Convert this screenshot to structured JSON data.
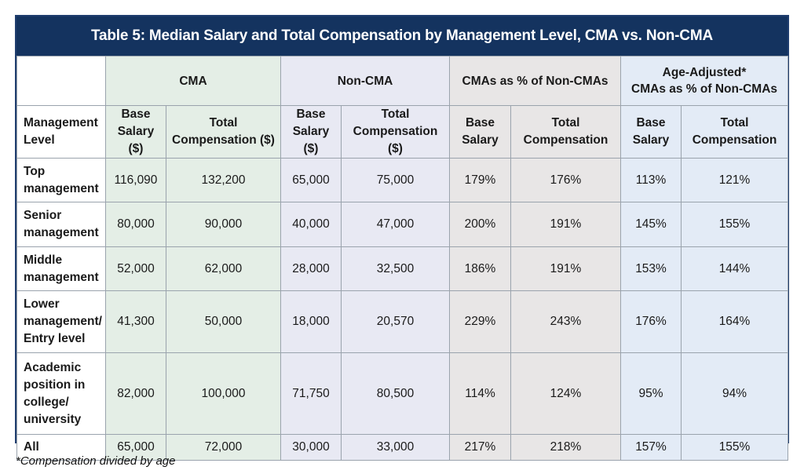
{
  "title": "Table 5: Median Salary and Total Compensation by Management Level, CMA vs. Non-CMA",
  "groups": {
    "cma": "CMA",
    "non_cma": "Non-CMA",
    "pct": "CMAs as % of Non-CMAs",
    "age_line1": "Age-Adjusted*",
    "age_line2": "CMAs as % of Non-CMAs"
  },
  "subheaders": {
    "level_line1": "Management",
    "level_line2": "Level",
    "base_line1": "Base",
    "base_line2": "Salary ($)",
    "total_line1": "Total",
    "total_line2": "Compensation ($)",
    "base_pct_line1": "Base",
    "base_pct_line2": "Salary",
    "total_pct_line1": "Total",
    "total_pct_line2": "Compensation"
  },
  "rows": [
    {
      "level": [
        "Top",
        "management"
      ],
      "values": [
        "116,090",
        "132,200",
        "65,000",
        "75,000",
        "179%",
        "176%",
        "113%",
        "121%"
      ]
    },
    {
      "level": [
        "Senior",
        "management"
      ],
      "values": [
        "80,000",
        "90,000",
        "40,000",
        "47,000",
        "200%",
        "191%",
        "145%",
        "155%"
      ]
    },
    {
      "level": [
        "Middle",
        "management"
      ],
      "values": [
        "52,000",
        "62,000",
        "28,000",
        "32,500",
        "186%",
        "191%",
        "153%",
        "144%"
      ]
    },
    {
      "level": [
        "Lower",
        "management/",
        "Entry level"
      ],
      "values": [
        "41,300",
        "50,000",
        "18,000",
        "20,570",
        "229%",
        "243%",
        "176%",
        "164%"
      ]
    },
    {
      "level": [
        "Academic",
        "position in",
        "college/",
        "university"
      ],
      "values": [
        "82,000",
        "100,000",
        "71,750",
        "80,500",
        "114%",
        "124%",
        "95%",
        "94%"
      ]
    },
    {
      "level": [
        "All"
      ],
      "values": [
        "65,000",
        "72,000",
        "30,000",
        "33,000",
        "217%",
        "218%",
        "157%",
        "155%"
      ]
    }
  ],
  "footnote": "*Compensation divided by age",
  "colors": {
    "title_bg": "#14335f",
    "cma_bg": "#e4eee6",
    "non_cma_bg": "#e8e9f3",
    "pct_bg": "#e8e6e6",
    "age_bg": "#e3ebf6"
  }
}
